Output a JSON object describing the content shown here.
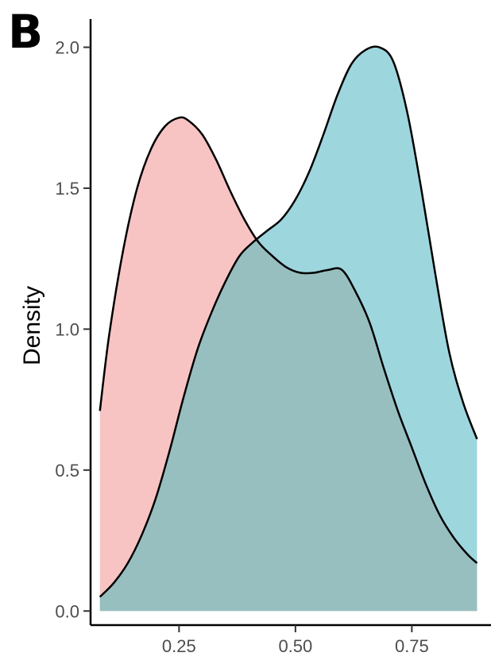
{
  "panel_label": "B",
  "chart_data": {
    "type": "area",
    "title": "",
    "xlabel": "",
    "ylabel": "Density",
    "xlim": [
      0.06,
      0.92
    ],
    "ylim": [
      -0.05,
      2.1
    ],
    "x_ticks": [
      0.25,
      0.5,
      0.75
    ],
    "x_tick_labels": [
      "0.25",
      "0.50",
      "0.75"
    ],
    "y_ticks": [
      0.0,
      0.5,
      1.0,
      1.5,
      2.0
    ],
    "y_tick_labels": [
      "0.0",
      "0.5",
      "1.0",
      "1.5",
      "2.0"
    ],
    "grid": false,
    "legend": "none",
    "series": [
      {
        "fill": "#f8c4c3",
        "x": [
          0.08,
          0.1,
          0.13,
          0.16,
          0.19,
          0.22,
          0.25,
          0.27,
          0.3,
          0.33,
          0.36,
          0.39,
          0.42,
          0.45,
          0.48,
          0.51,
          0.54,
          0.57,
          0.6,
          0.63,
          0.66,
          0.69,
          0.72,
          0.75,
          0.78,
          0.81,
          0.84,
          0.87,
          0.89
        ],
        "y": [
          0.71,
          0.98,
          1.28,
          1.5,
          1.64,
          1.72,
          1.75,
          1.74,
          1.69,
          1.6,
          1.49,
          1.39,
          1.31,
          1.26,
          1.22,
          1.2,
          1.2,
          1.21,
          1.21,
          1.13,
          1.02,
          0.86,
          0.71,
          0.58,
          0.45,
          0.34,
          0.26,
          0.2,
          0.17
        ]
      },
      {
        "fill": "#9ed6de",
        "x": [
          0.08,
          0.11,
          0.14,
          0.17,
          0.2,
          0.23,
          0.26,
          0.29,
          0.32,
          0.35,
          0.38,
          0.41,
          0.44,
          0.47,
          0.5,
          0.53,
          0.56,
          0.59,
          0.62,
          0.65,
          0.68,
          0.71,
          0.74,
          0.77,
          0.8,
          0.83,
          0.86,
          0.89
        ],
        "y": [
          0.05,
          0.1,
          0.17,
          0.27,
          0.4,
          0.57,
          0.76,
          0.93,
          1.06,
          1.17,
          1.26,
          1.31,
          1.35,
          1.39,
          1.46,
          1.56,
          1.69,
          1.83,
          1.94,
          1.99,
          2.0,
          1.95,
          1.77,
          1.5,
          1.2,
          0.92,
          0.74,
          0.61
        ]
      }
    ],
    "overlap_color": "#98bfc0"
  }
}
